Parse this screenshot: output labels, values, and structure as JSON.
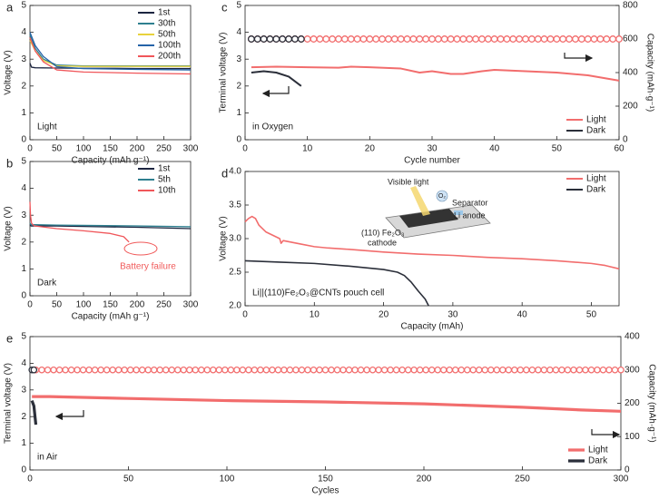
{
  "chart_data": [
    {
      "type": "line",
      "label": "a",
      "xlabel": "Capacity (mAh g⁻¹)",
      "ylabel": "Voltage (V)",
      "xlim": [
        0,
        300
      ],
      "xticks": [
        0,
        50,
        100,
        150,
        200,
        250,
        300
      ],
      "ylim": [
        0,
        5
      ],
      "yticks": [
        0,
        1,
        2,
        3,
        4,
        5
      ],
      "legend": "upper right",
      "annotations": [
        "Light"
      ],
      "series": [
        {
          "name": "1st",
          "color": "#1c2540",
          "x": [
            0,
            3,
            10,
            50,
            100,
            150,
            200,
            250,
            300
          ],
          "values": [
            2.85,
            2.7,
            2.68,
            2.67,
            2.66,
            2.66,
            2.65,
            2.65,
            2.65
          ]
        },
        {
          "name": "30th",
          "color": "#2e7f8f",
          "x": [
            0,
            10,
            25,
            50,
            100,
            200,
            300
          ],
          "values": [
            3.9,
            3.4,
            3.0,
            2.78,
            2.75,
            2.75,
            2.75
          ]
        },
        {
          "name": "50th",
          "color": "#e8d23c",
          "x": [
            0,
            10,
            25,
            50,
            100,
            200,
            300
          ],
          "values": [
            3.7,
            3.3,
            2.95,
            2.75,
            2.73,
            2.73,
            2.73
          ]
        },
        {
          "name": "100th",
          "color": "#2563a8",
          "x": [
            0,
            10,
            25,
            50,
            100,
            200,
            300
          ],
          "values": [
            4.0,
            3.5,
            3.1,
            2.72,
            2.65,
            2.62,
            2.6
          ]
        },
        {
          "name": "200th",
          "color": "#f0565a",
          "x": [
            0,
            10,
            25,
            50,
            100,
            200,
            300
          ],
          "values": [
            3.8,
            3.3,
            2.9,
            2.6,
            2.52,
            2.48,
            2.45
          ]
        }
      ]
    },
    {
      "type": "line",
      "label": "b",
      "xlabel": "Capacity (mAh g⁻¹)",
      "ylabel": "Voltage (V)",
      "xlim": [
        0,
        300
      ],
      "xticks": [
        0,
        50,
        100,
        150,
        200,
        250,
        300
      ],
      "ylim": [
        0,
        5
      ],
      "yticks": [
        0,
        1,
        2,
        3,
        4,
        5
      ],
      "legend": "upper right",
      "annotations": [
        "Dark"
      ],
      "callout": "Battery failure",
      "series": [
        {
          "name": "1st",
          "color": "#1c2540",
          "x": [
            0,
            2,
            50,
            100,
            200,
            300
          ],
          "values": [
            2.65,
            2.6,
            2.6,
            2.58,
            2.55,
            2.5
          ]
        },
        {
          "name": "5th",
          "color": "#2e7f8f",
          "x": [
            0,
            2,
            50,
            100,
            200,
            300
          ],
          "values": [
            2.7,
            2.65,
            2.63,
            2.62,
            2.6,
            2.57
          ]
        },
        {
          "name": "10th",
          "color": "#f0565a",
          "x": [
            0,
            1,
            3,
            8,
            50,
            100,
            150,
            175,
            185
          ],
          "values": [
            3.5,
            3.0,
            2.7,
            2.6,
            2.5,
            2.42,
            2.32,
            2.2,
            2.0
          ]
        }
      ]
    },
    {
      "type": "line",
      "label": "c",
      "xlabel": "Cycle number",
      "ylabel": "Terminal voltage (V)",
      "y2label": "Capacity (mAh·g⁻¹)",
      "xlim": [
        0,
        60
      ],
      "xticks": [
        0,
        10,
        20,
        30,
        40,
        50,
        60
      ],
      "ylim": [
        0,
        5
      ],
      "yticks": [
        0,
        1,
        2,
        3,
        4,
        5
      ],
      "y2lim": [
        0,
        800
      ],
      "y2ticks": [
        0,
        200,
        400,
        600,
        800
      ],
      "legend": "lower right",
      "annotations": [
        "in Oxygen"
      ],
      "series": [
        {
          "name": "Light",
          "color": "#f26d6d",
          "x": [
            1,
            5,
            10,
            15,
            17,
            20,
            25,
            28,
            30,
            33,
            35,
            38,
            40,
            45,
            50,
            55,
            60
          ],
          "values": [
            2.7,
            2.72,
            2.7,
            2.68,
            2.72,
            2.7,
            2.65,
            2.5,
            2.55,
            2.45,
            2.45,
            2.55,
            2.6,
            2.55,
            2.5,
            2.4,
            2.2
          ]
        },
        {
          "name": "Dark",
          "color": "#2b2f3a",
          "x": [
            1,
            3,
            5,
            7,
            9
          ],
          "values": [
            2.5,
            2.55,
            2.5,
            2.35,
            2.0
          ]
        },
        {
          "axis": "y2",
          "marker": "circle",
          "color": "#f26d6d",
          "x": [
            1,
            2,
            3,
            4,
            5,
            6,
            7,
            8,
            9,
            10,
            11,
            12,
            13,
            14,
            15,
            16,
            17,
            18,
            19,
            20,
            21,
            22,
            23,
            24,
            25,
            26,
            27,
            28,
            29,
            30,
            31,
            32,
            33,
            34,
            35,
            36,
            37,
            38,
            39,
            40,
            41,
            42,
            43,
            44,
            45,
            46,
            47,
            48,
            49,
            50,
            51,
            52,
            53,
            54,
            55,
            56,
            57,
            58,
            59,
            60
          ],
          "values": [
            600,
            600,
            600,
            600,
            600,
            600,
            600,
            600,
            600,
            600,
            600,
            600,
            600,
            600,
            600,
            600,
            600,
            600,
            600,
            600,
            600,
            600,
            600,
            600,
            600,
            600,
            600,
            600,
            600,
            600,
            600,
            600,
            600,
            600,
            600,
            600,
            600,
            600,
            600,
            600,
            600,
            600,
            600,
            600,
            600,
            600,
            600,
            600,
            600,
            600,
            600,
            600,
            600,
            600,
            600,
            600,
            600,
            600,
            600,
            600
          ]
        },
        {
          "axis": "y2",
          "marker": "circle",
          "color": "#2b2f3a",
          "x": [
            1,
            2,
            3,
            4,
            5,
            6,
            7,
            8,
            9
          ],
          "values": [
            600,
            600,
            600,
            600,
            600,
            600,
            600,
            600,
            600
          ]
        }
      ]
    },
    {
      "type": "line",
      "label": "d",
      "xlabel": "Capacity (mAh)",
      "ylabel": "Voltage (V)",
      "xlim": [
        0,
        54
      ],
      "xticks": [
        0,
        10,
        20,
        30,
        40,
        50
      ],
      "ylim": [
        2,
        4
      ],
      "yticks": [
        {
          "value": 2,
          "label": "2.0"
        },
        2.5,
        {
          "value": 3,
          "label": "3.0"
        },
        3.5,
        {
          "value": 4,
          "label": "4.0"
        }
      ],
      "legend": "upper right",
      "annotations": [
        "Li||(110)Fe₂O₃@CNTs pouch cell"
      ],
      "inset": {
        "light": "Visible light",
        "gas": "O₂",
        "separator": "Separator",
        "anode": "Li anode",
        "cathode": [
          "(110) Fe₂O₃",
          "cathode"
        ]
      },
      "series": [
        {
          "name": "Light",
          "color": "#f26d6d",
          "x": [
            0,
            0.5,
            1,
            1.5,
            2,
            3,
            5,
            5.2,
            5.5,
            8,
            10,
            12,
            15,
            20,
            25,
            30,
            35,
            40,
            45,
            50,
            52,
            54
          ],
          "values": [
            3.25,
            3.3,
            3.33,
            3.3,
            3.2,
            3.1,
            3.0,
            2.93,
            2.97,
            2.92,
            2.88,
            2.86,
            2.84,
            2.8,
            2.77,
            2.75,
            2.72,
            2.7,
            2.67,
            2.63,
            2.6,
            2.55
          ]
        },
        {
          "name": "Dark",
          "color": "#2b2f3a",
          "x": [
            0,
            5,
            10,
            15,
            20,
            22,
            23,
            24,
            25,
            26,
            26.5
          ],
          "values": [
            2.67,
            2.65,
            2.63,
            2.59,
            2.54,
            2.5,
            2.45,
            2.35,
            2.22,
            2.1,
            2.0
          ]
        }
      ]
    },
    {
      "type": "line",
      "label": "e",
      "xlabel": "Cycles",
      "ylabel": "Terminal voltage (V)",
      "y2label": "Capacity (mAh·g⁻¹)",
      "xlim": [
        0,
        300
      ],
      "xticks": [
        0,
        50,
        100,
        150,
        200,
        250,
        300
      ],
      "ylim": [
        0,
        5
      ],
      "yticks": [
        0,
        1,
        2,
        3,
        4,
        5
      ],
      "y2lim": [
        0,
        400
      ],
      "y2ticks": [
        0,
        100,
        200,
        300,
        400
      ],
      "legend": "lower right",
      "annotations": [
        "in Air"
      ],
      "series": [
        {
          "name": "Light",
          "color": "#f26d6d",
          "x": [
            1,
            10,
            50,
            100,
            150,
            200,
            250,
            280,
            300
          ],
          "values": [
            2.75,
            2.75,
            2.68,
            2.6,
            2.55,
            2.48,
            2.35,
            2.25,
            2.2
          ]
        },
        {
          "name": "Dark",
          "color": "#2b2f3a",
          "x": [
            1,
            2,
            3
          ],
          "values": [
            2.6,
            2.4,
            1.7
          ]
        },
        {
          "axis": "y2",
          "marker": "circle",
          "color": "#f26d6d",
          "x": [
            3,
            6,
            9,
            12,
            15,
            18,
            21,
            24,
            27,
            30,
            33,
            36,
            39,
            42,
            45,
            48,
            51,
            54,
            57,
            60,
            63,
            66,
            69,
            72,
            75,
            78,
            81,
            84,
            87,
            90,
            93,
            96,
            99,
            102,
            105,
            108,
            111,
            114,
            117,
            120,
            123,
            126,
            129,
            132,
            135,
            138,
            141,
            144,
            147,
            150,
            153,
            156,
            159,
            162,
            165,
            168,
            171,
            174,
            177,
            180,
            183,
            186,
            189,
            192,
            195,
            198,
            201,
            204,
            207,
            210,
            213,
            216,
            219,
            222,
            225,
            228,
            231,
            234,
            237,
            240,
            243,
            246,
            249,
            252,
            255,
            258,
            261,
            264,
            267,
            270,
            273,
            276,
            279,
            282,
            285,
            288,
            291,
            294,
            297,
            300
          ],
          "values": [
            300,
            300,
            300,
            300,
            300,
            300,
            300,
            300,
            300,
            300,
            300,
            300,
            300,
            300,
            300,
            300,
            300,
            300,
            300,
            300,
            300,
            300,
            300,
            300,
            300,
            300,
            300,
            300,
            300,
            300,
            300,
            300,
            300,
            300,
            300,
            300,
            300,
            300,
            300,
            300,
            300,
            300,
            300,
            300,
            300,
            300,
            300,
            300,
            300,
            300,
            300,
            300,
            300,
            300,
            300,
            300,
            300,
            300,
            300,
            300,
            300,
            300,
            300,
            300,
            300,
            300,
            300,
            300,
            300,
            300,
            300,
            300,
            300,
            300,
            300,
            300,
            300,
            300,
            300,
            300,
            300,
            300,
            300,
            300,
            300,
            300,
            300,
            300,
            300,
            300,
            300,
            300,
            300,
            300,
            300,
            300,
            300,
            300,
            300,
            300
          ]
        },
        {
          "axis": "y2",
          "marker": "circle",
          "color": "#2b2f3a",
          "x": [
            1,
            2
          ],
          "values": [
            300,
            300
          ]
        }
      ]
    }
  ]
}
